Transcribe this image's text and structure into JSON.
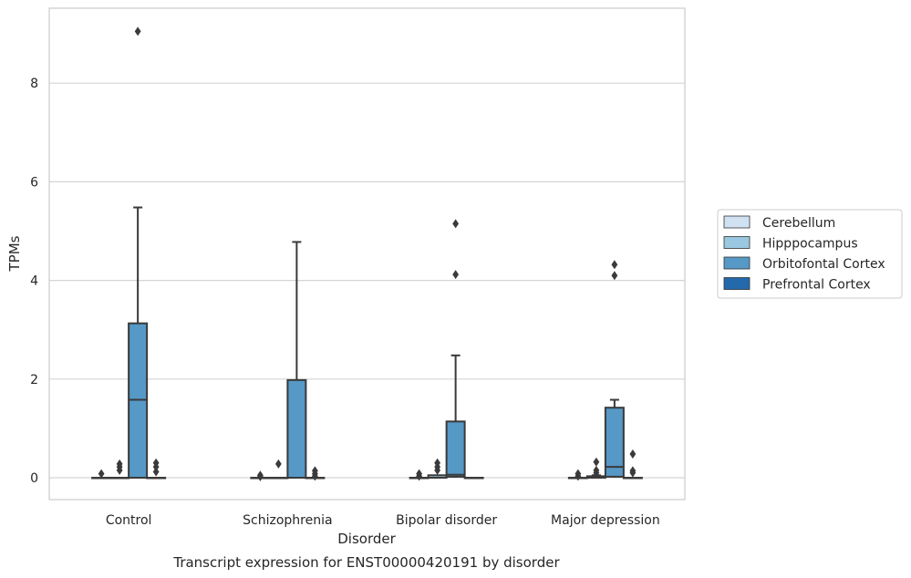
{
  "chart_data": {
    "type": "box",
    "caption": "Transcript expression for ENST00000420191 by disorder",
    "xlabel": "Disorder",
    "ylabel": "TPMs",
    "ylim": [
      -0.45,
      9.6
    ],
    "yticks": [
      0,
      2,
      4,
      6,
      8
    ],
    "grid": "horizontal",
    "legend_position": "right",
    "categories": [
      "Control",
      "Schizophrenia",
      "Bipolar disorder",
      "Major depression"
    ],
    "series": [
      {
        "name": "Cerebellum",
        "color": "#d0e1f2",
        "boxes": [
          {
            "q1": 0,
            "median": 0,
            "q3": 0,
            "whisker_low": 0,
            "whisker_high": 0,
            "outliers": [
              0.08
            ]
          },
          {
            "q1": 0,
            "median": 0,
            "q3": 0,
            "whisker_low": 0,
            "whisker_high": 0,
            "outliers": [
              0.05,
              0.02
            ]
          },
          {
            "q1": 0,
            "median": 0,
            "q3": 0,
            "whisker_low": 0,
            "whisker_high": 0,
            "outliers": [
              0.08,
              0.03
            ]
          },
          {
            "q1": 0,
            "median": 0,
            "q3": 0,
            "whisker_low": 0,
            "whisker_high": 0,
            "outliers": [
              0.08,
              0.03
            ]
          }
        ]
      },
      {
        "name": "Hipppocampus",
        "color": "#9ac8e0",
        "boxes": [
          {
            "q1": 0,
            "median": 0,
            "q3": 0,
            "whisker_low": 0,
            "whisker_high": 0,
            "outliers": [
              0.28,
              0.22,
              0.15
            ]
          },
          {
            "q1": 0,
            "median": 0,
            "q3": 0,
            "whisker_low": 0,
            "whisker_high": 0,
            "outliers": [
              0.28
            ]
          },
          {
            "q1": 0,
            "median": 0,
            "q3": 0.05,
            "whisker_low": 0,
            "whisker_high": 0.05,
            "outliers": [
              0.3,
              0.22,
              0.15
            ]
          },
          {
            "q1": 0,
            "median": 0,
            "q3": 0.03,
            "whisker_low": 0,
            "whisker_high": 0.05,
            "outliers": [
              0.32,
              0.15,
              0.1
            ]
          }
        ]
      },
      {
        "name": "Orbitofontal Cortex",
        "color": "#5698c6",
        "boxes": [
          {
            "q1": 0,
            "median": 1.58,
            "q3": 3.13,
            "whisker_low": 0,
            "whisker_high": 5.48,
            "outliers": [
              9.05
            ]
          },
          {
            "q1": 0,
            "median": 0,
            "q3": 1.98,
            "whisker_low": 0,
            "whisker_high": 4.78,
            "outliers": []
          },
          {
            "q1": 0.02,
            "median": 0.06,
            "q3": 1.14,
            "whisker_low": 0,
            "whisker_high": 2.48,
            "outliers": [
              5.15,
              4.12
            ]
          },
          {
            "q1": 0.02,
            "median": 0.22,
            "q3": 1.42,
            "whisker_low": 0,
            "whisker_high": 1.58,
            "outliers": [
              4.32,
              4.1
            ]
          }
        ]
      },
      {
        "name": "Prefrontal Cortex",
        "color": "#2469ab",
        "boxes": [
          {
            "q1": 0,
            "median": 0,
            "q3": 0,
            "whisker_low": 0,
            "whisker_high": 0,
            "outliers": [
              0.3,
              0.22,
              0.12
            ]
          },
          {
            "q1": 0,
            "median": 0,
            "q3": 0,
            "whisker_low": 0,
            "whisker_high": 0,
            "outliers": [
              0.14,
              0.08,
              0.03
            ]
          },
          {
            "q1": 0,
            "median": 0,
            "q3": 0,
            "whisker_low": 0,
            "whisker_high": 0,
            "outliers": []
          },
          {
            "q1": 0,
            "median": 0,
            "q3": 0,
            "whisker_low": 0,
            "whisker_high": 0,
            "outliers": [
              0.48,
              0.14,
              0.1
            ]
          }
        ]
      }
    ]
  }
}
